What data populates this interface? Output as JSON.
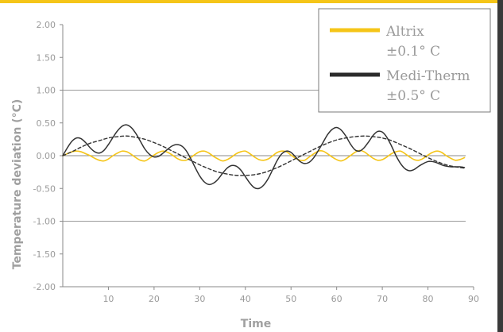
{
  "chart_data": {
    "type": "line",
    "xlabel": "Time",
    "ylabel": "Temperature deviation (°C)",
    "xlim": [
      0,
      90
    ],
    "ylim": [
      -2.0,
      2.0
    ],
    "x_ticks": [
      10,
      20,
      30,
      40,
      50,
      60,
      70,
      80,
      90
    ],
    "y_ticks": [
      "2.00",
      "1.50",
      "1.00",
      "0.50",
      "0.00",
      "-0.50",
      "-1.00",
      "-1.50",
      "-2.00"
    ],
    "gridlines_y": [
      1.0,
      0.0,
      -1.0
    ],
    "legend": {
      "placement": "top-right"
    },
    "series": [
      {
        "name": "Altrix",
        "name_line2": "±0.1° C",
        "color": "#f5c518",
        "style": "solid",
        "x": [
          0,
          1,
          2,
          3,
          4,
          5,
          6,
          7,
          8,
          9,
          10,
          11,
          12,
          13,
          14,
          15,
          16,
          17,
          18,
          19,
          20,
          21,
          22,
          23,
          24,
          25,
          26,
          27,
          28,
          29,
          30,
          31,
          32,
          33,
          34,
          35,
          36,
          37,
          38,
          39,
          40,
          41,
          42,
          43,
          44,
          45,
          46,
          47,
          48,
          49,
          50,
          51,
          52,
          53,
          54,
          55,
          56,
          57,
          58,
          59,
          60,
          61,
          62,
          63,
          64,
          65,
          66,
          67,
          68,
          69,
          70,
          71,
          72,
          73,
          74,
          75,
          76,
          77,
          78,
          79,
          80,
          81,
          82,
          83,
          84,
          85,
          86,
          87,
          88
        ],
        "y": [
          0.0,
          0.03,
          0.06,
          0.07,
          0.06,
          0.03,
          0.0,
          -0.04,
          -0.07,
          -0.08,
          -0.05,
          0.0,
          0.04,
          0.07,
          0.06,
          0.02,
          -0.03,
          -0.07,
          -0.08,
          -0.04,
          0.01,
          0.05,
          0.07,
          0.05,
          0.01,
          -0.04,
          -0.07,
          -0.07,
          -0.03,
          0.02,
          0.06,
          0.07,
          0.04,
          -0.01,
          -0.05,
          -0.08,
          -0.06,
          -0.02,
          0.03,
          0.06,
          0.07,
          0.03,
          -0.02,
          -0.06,
          -0.07,
          -0.05,
          0.0,
          0.05,
          0.07,
          0.06,
          0.01,
          -0.04,
          -0.07,
          -0.07,
          -0.02,
          0.03,
          0.07,
          0.07,
          0.03,
          -0.02,
          -0.06,
          -0.08,
          -0.05,
          0.0,
          0.05,
          0.08,
          0.06,
          0.01,
          -0.04,
          -0.07,
          -0.06,
          -0.02,
          0.03,
          0.06,
          0.07,
          0.03,
          -0.02,
          -0.06,
          -0.07,
          -0.04,
          0.01,
          0.05,
          0.07,
          0.05,
          0.0,
          -0.04,
          -0.07,
          -0.06,
          -0.03
        ]
      },
      {
        "name": "Medi-Therm",
        "name_line2": "±0.5° C",
        "color": "#333333",
        "style": "solid",
        "x": [
          0,
          1,
          2,
          3,
          4,
          5,
          6,
          7,
          8,
          9,
          10,
          11,
          12,
          13,
          14,
          15,
          16,
          17,
          18,
          19,
          20,
          21,
          22,
          23,
          24,
          25,
          26,
          27,
          28,
          29,
          30,
          31,
          32,
          33,
          34,
          35,
          36,
          37,
          38,
          39,
          40,
          41,
          42,
          43,
          44,
          45,
          46,
          47,
          48,
          49,
          50,
          51,
          52,
          53,
          54,
          55,
          56,
          57,
          58,
          59,
          60,
          61,
          62,
          63,
          64,
          65,
          66,
          67,
          68,
          69,
          70,
          71,
          72,
          73,
          74,
          75,
          76,
          77,
          78,
          79,
          80,
          81,
          82,
          83,
          84,
          85,
          86,
          87,
          88
        ],
        "y": [
          0.0,
          0.12,
          0.22,
          0.27,
          0.26,
          0.2,
          0.12,
          0.06,
          0.04,
          0.08,
          0.17,
          0.28,
          0.38,
          0.45,
          0.47,
          0.43,
          0.34,
          0.22,
          0.1,
          0.02,
          -0.02,
          -0.01,
          0.04,
          0.1,
          0.15,
          0.17,
          0.15,
          0.08,
          -0.04,
          -0.18,
          -0.31,
          -0.4,
          -0.44,
          -0.42,
          -0.36,
          -0.27,
          -0.19,
          -0.15,
          -0.16,
          -0.22,
          -0.32,
          -0.42,
          -0.49,
          -0.5,
          -0.45,
          -0.35,
          -0.21,
          -0.07,
          0.03,
          0.07,
          0.05,
          -0.02,
          -0.09,
          -0.12,
          -0.1,
          -0.03,
          0.08,
          0.2,
          0.32,
          0.4,
          0.43,
          0.39,
          0.3,
          0.18,
          0.09,
          0.07,
          0.12,
          0.21,
          0.31,
          0.37,
          0.36,
          0.28,
          0.15,
          0.0,
          -0.12,
          -0.2,
          -0.23,
          -0.21,
          -0.16,
          -0.12,
          -0.09,
          -0.09,
          -0.11,
          -0.14,
          -0.16,
          -0.17,
          -0.17,
          -0.17,
          -0.18
        ]
      },
      {
        "name": "",
        "color": "#333333",
        "style": "dashed",
        "x": [
          0,
          2,
          4,
          6,
          8,
          10,
          12,
          14,
          16,
          18,
          20,
          22,
          24,
          26,
          28,
          30,
          32,
          34,
          36,
          38,
          40,
          42,
          44,
          46,
          48,
          50,
          52,
          54,
          56,
          58,
          60,
          62,
          64,
          66,
          68,
          70,
          72,
          74,
          76,
          78,
          80,
          82,
          84,
          86,
          88
        ],
        "y": [
          0.0,
          0.06,
          0.13,
          0.19,
          0.23,
          0.27,
          0.29,
          0.3,
          0.28,
          0.25,
          0.2,
          0.14,
          0.07,
          0.0,
          -0.07,
          -0.14,
          -0.2,
          -0.25,
          -0.28,
          -0.3,
          -0.3,
          -0.29,
          -0.26,
          -0.21,
          -0.15,
          -0.08,
          -0.01,
          0.06,
          0.13,
          0.19,
          0.24,
          0.27,
          0.29,
          0.3,
          0.29,
          0.27,
          0.23,
          0.17,
          0.11,
          0.04,
          -0.03,
          -0.09,
          -0.14,
          -0.17,
          -0.19
        ]
      }
    ]
  }
}
